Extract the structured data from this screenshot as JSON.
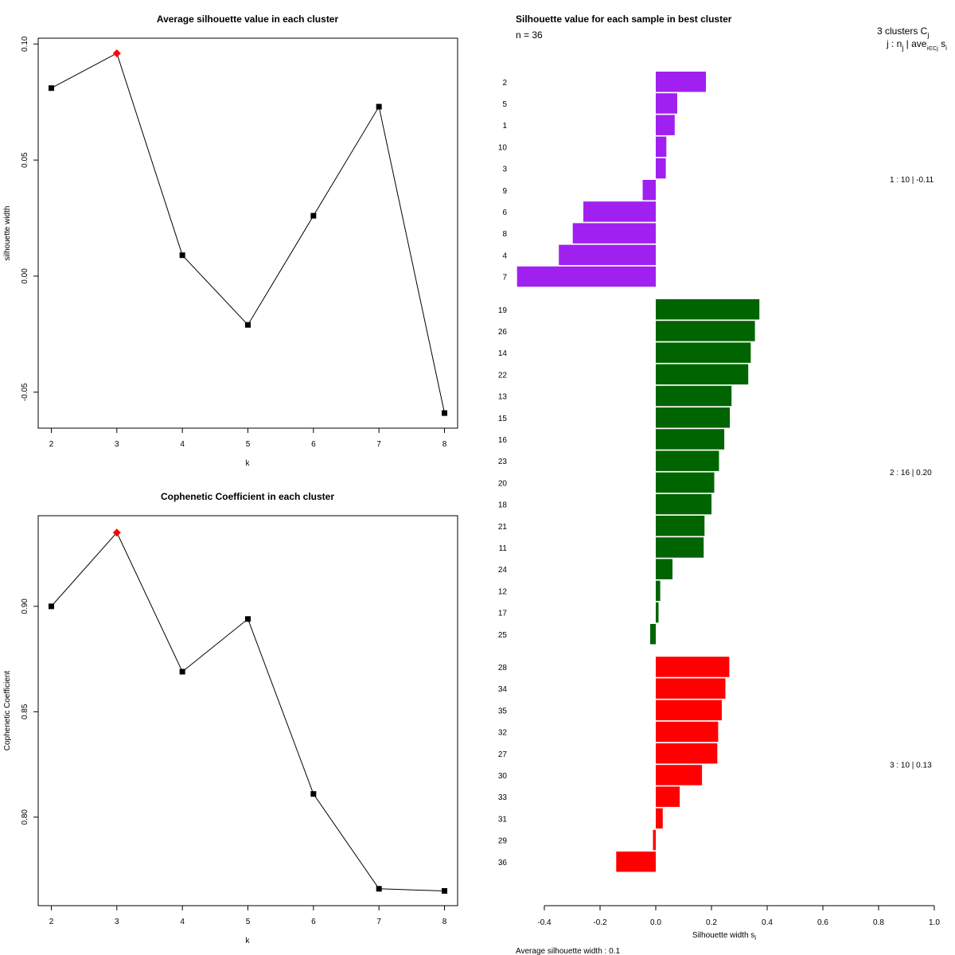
{
  "chart_data": [
    {
      "type": "line",
      "title": "Average silhouette value in each cluster",
      "xlabel": "k",
      "ylabel": "silhouette width",
      "x": [
        2,
        3,
        4,
        5,
        6,
        7,
        8
      ],
      "values": [
        0.081,
        0.096,
        0.009,
        -0.021,
        0.026,
        0.073,
        -0.059
      ],
      "highlight_x": 3,
      "xticks": [
        "2",
        "3",
        "4",
        "5",
        "6",
        "7",
        "8"
      ],
      "yticks": [
        {
          "value": 0.1,
          "label": "0.10"
        },
        {
          "value": 0.05,
          "label": "0.05"
        },
        {
          "value": 0.0,
          "label": "0.00"
        },
        {
          "value": -0.05,
          "label": "-0.05"
        }
      ],
      "xlim": [
        1.8,
        8.2
      ],
      "ylim": [
        -0.0655,
        0.1025
      ]
    },
    {
      "type": "line",
      "title": "Cophenetic Coefficient in each cluster",
      "xlabel": "k",
      "ylabel": "Cophenetic Coefficient",
      "x": [
        2,
        3,
        4,
        5,
        6,
        7,
        8
      ],
      "values": [
        0.9,
        0.935,
        0.869,
        0.894,
        0.811,
        0.766,
        0.765
      ],
      "highlight_x": 3,
      "xticks": [
        "2",
        "3",
        "4",
        "5",
        "6",
        "7",
        "8"
      ],
      "yticks": [
        {
          "value": 0.9,
          "label": "0.90"
        },
        {
          "value": 0.85,
          "label": "0.85"
        },
        {
          "value": 0.8,
          "label": "0.80"
        }
      ],
      "xlim": [
        1.8,
        8.2
      ],
      "ylim": [
        0.758,
        0.943
      ]
    },
    {
      "type": "bar",
      "orientation": "horizontal",
      "title": "Silhouette value for each sample in best cluster",
      "n_label": "n = 36",
      "header_line1": "3  clusters  C",
      "header_line1_sub": "j",
      "header_line2": "j :  n",
      "header_line2_sub": "j",
      "header_line2_tail": " | ave",
      "header_line2_tail_sub": "i∈Cj",
      "header_line2_end": " s",
      "header_line2_end_sub": "i",
      "xlabel": "Silhouette width s",
      "xlabel_sub": "i",
      "footer": "Average silhouette width :  0.1",
      "xlim": [
        -0.4,
        1.0
      ],
      "xticks": [
        "-0.4",
        "-0.2",
        "0.0",
        "0.2",
        "0.4",
        "0.6",
        "0.8",
        "1.0"
      ],
      "tick_values": [
        -0.4,
        -0.2,
        0.0,
        0.2,
        0.4,
        0.6,
        0.8,
        1.0
      ],
      "clusters": [
        {
          "id": 1,
          "color": "#A020F0",
          "summary": "1 :   10  |  -0.11",
          "samples": [
            "2",
            "5",
            "1",
            "10",
            "3",
            "9",
            "6",
            "8",
            "4",
            "7"
          ],
          "values": [
            0.18,
            0.077,
            0.068,
            0.038,
            0.036,
            -0.047,
            -0.26,
            -0.298,
            -0.348,
            -0.498
          ]
        },
        {
          "id": 2,
          "color": "#006400",
          "summary": "2 :   16  |  0.20",
          "samples": [
            "19",
            "26",
            "14",
            "22",
            "13",
            "15",
            "16",
            "23",
            "20",
            "18",
            "21",
            "11",
            "24",
            "12",
            "17",
            "25"
          ],
          "values": [
            0.372,
            0.356,
            0.341,
            0.332,
            0.272,
            0.266,
            0.246,
            0.227,
            0.21,
            0.2,
            0.175,
            0.172,
            0.06,
            0.016,
            0.01,
            -0.02
          ]
        },
        {
          "id": 3,
          "color": "#FF0000",
          "summary": "3 :   10  |  0.13",
          "samples": [
            "28",
            "34",
            "35",
            "32",
            "27",
            "30",
            "33",
            "31",
            "29",
            "36"
          ],
          "values": [
            0.264,
            0.25,
            0.237,
            0.224,
            0.221,
            0.166,
            0.086,
            0.025,
            -0.01,
            -0.142
          ]
        }
      ]
    }
  ]
}
